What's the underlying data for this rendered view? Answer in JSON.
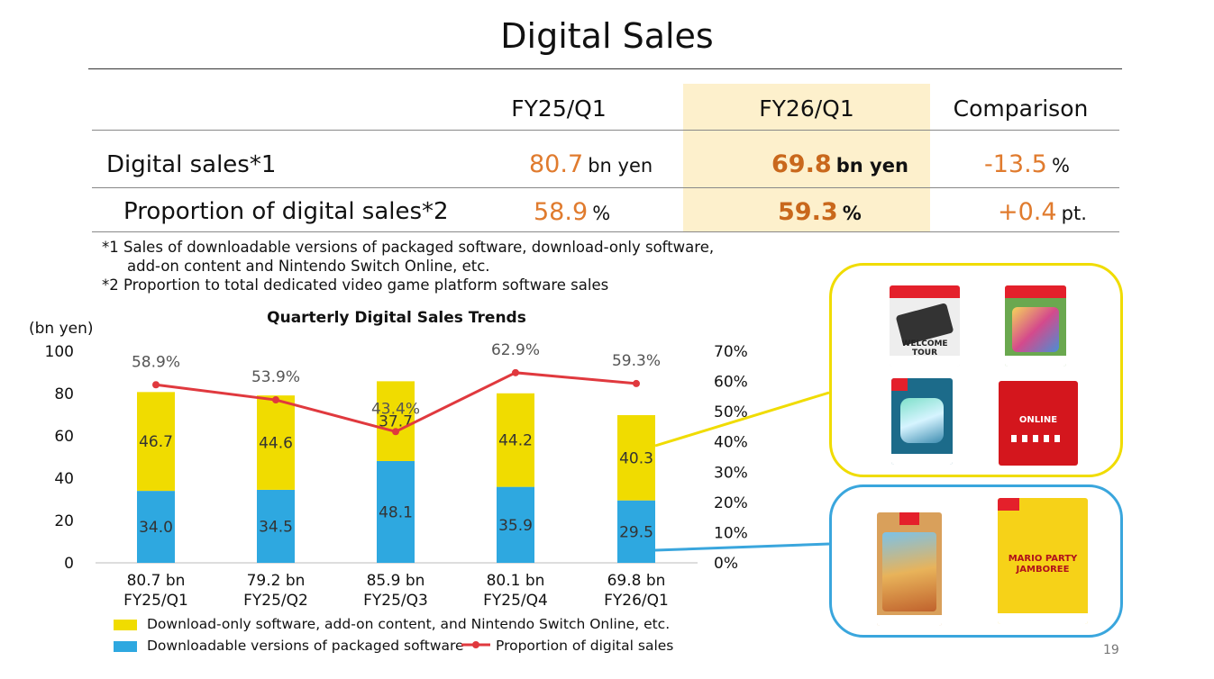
{
  "title": "Digital Sales",
  "table": {
    "columns": [
      "FY25/Q1",
      "FY26/Q1",
      "Comparison"
    ],
    "rows": [
      {
        "label": "Digital sales*1",
        "fy25": "80.7",
        "fy25_unit": "bn yen",
        "fy26": "69.8",
        "fy26_unit": "bn yen",
        "cmp": "-13.5",
        "cmp_unit": "%"
      },
      {
        "label": "Proportion of digital sales*2",
        "fy25": "58.9",
        "fy25_unit": "%",
        "fy26": "59.3",
        "fy26_unit": "%",
        "cmp": "+0.4",
        "cmp_unit": "pt."
      }
    ]
  },
  "notes": [
    "*1 Sales of downloadable versions of packaged software, download-only software,",
    "add-on content and Nintendo Switch Online, etc.",
    "*2 Proportion to total dedicated video game platform software sales"
  ],
  "chart_data": {
    "type": "bar",
    "title": "Quarterly Digital Sales Trends",
    "ylabel": "(bn yen)",
    "ylim": [
      0,
      100
    ],
    "yticks": [
      "100",
      "80",
      "60",
      "40",
      "20",
      "0"
    ],
    "y2ticks": [
      "70%",
      "60%",
      "50%",
      "40%",
      "30%",
      "20%",
      "10%",
      "0%"
    ],
    "y2lim": [
      0,
      70
    ],
    "categories": [
      "FY25/Q1",
      "FY25/Q2",
      "FY25/Q3",
      "FY25/Q4",
      "FY26/Q1"
    ],
    "totals": [
      "80.7 bn",
      "79.2 bn",
      "85.9 bn",
      "80.1 bn",
      "69.8 bn"
    ],
    "series": [
      {
        "name": "Downloadable versions of packaged software",
        "values": [
          34.0,
          34.5,
          48.1,
          35.9,
          29.5
        ],
        "labels": [
          "34.0",
          "34.5",
          "48.1",
          "35.9",
          "29.5"
        ],
        "color": "#2ea8e0"
      },
      {
        "name": "Download-only software, add-on content, and Nintendo Switch Online, etc.",
        "values": [
          46.7,
          44.6,
          37.7,
          44.2,
          40.3
        ],
        "labels": [
          "46.7",
          "44.6",
          "37.7",
          "44.2",
          "40.3"
        ],
        "color": "#f0dc00"
      },
      {
        "name": "Proportion of digital sales",
        "values": [
          58.9,
          53.9,
          43.4,
          62.9,
          59.3
        ],
        "labels": [
          "58.9%",
          "53.9%",
          "43.4%",
          "62.9%",
          "59.3%"
        ],
        "color": "#e0393e"
      }
    ],
    "legend": "bottom"
  },
  "images": {
    "yellow_box_color": "#f0dc00",
    "blue_box_color": "#3aa6dd",
    "cards": {
      "welcome_tour": "WELCOME TOUR",
      "online": "ONLINE",
      "mario_party": "MARIO PARTY JAMBOREE"
    }
  },
  "page_number": "19"
}
